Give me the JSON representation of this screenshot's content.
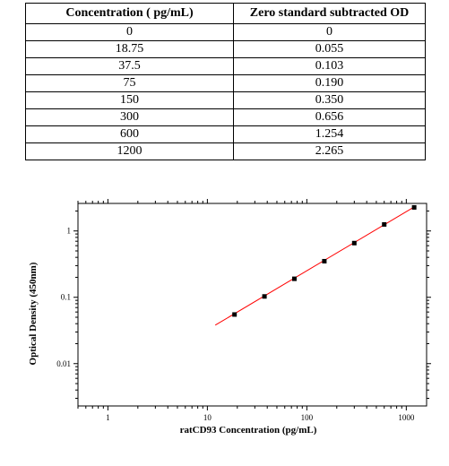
{
  "table": {
    "headers": [
      "Concentration ( pg/mL)",
      "Zero standard subtracted OD"
    ],
    "rows": [
      [
        "0",
        "0"
      ],
      [
        "18.75",
        "0.055"
      ],
      [
        "37.5",
        "0.103"
      ],
      [
        "75",
        "0.190"
      ],
      [
        "150",
        "0.350"
      ],
      [
        "300",
        "0.656"
      ],
      [
        "600",
        "1.254"
      ],
      [
        "1200",
        "2.265"
      ]
    ]
  },
  "chart_data": {
    "type": "scatter",
    "xlabel": "ratCD93 Concentration (pg/mL)",
    "ylabel": "Optical Density (450nm)",
    "x_scale": "log",
    "y_scale": "log",
    "xlim": [
      0.5,
      1600
    ],
    "ylim": [
      0.0023,
      2.6
    ],
    "x_ticks": [
      1,
      10,
      100,
      1000
    ],
    "x_tick_labels": [
      "1",
      "10",
      "100",
      "1000"
    ],
    "y_ticks": [
      0.01,
      0.1,
      1
    ],
    "y_tick_labels": [
      "0.01",
      "0.1",
      "1"
    ],
    "points": {
      "x": [
        18.75,
        37.5,
        75,
        150,
        300,
        600,
        1200
      ],
      "y": [
        0.055,
        0.103,
        0.19,
        0.35,
        0.656,
        1.254,
        2.265
      ]
    },
    "fit_line": {
      "x": [
        12,
        1200
      ],
      "y": [
        0.038,
        2.3
      ]
    },
    "grid": false,
    "colors": {
      "points": "#000000",
      "fit_line": "#ff0000"
    }
  }
}
